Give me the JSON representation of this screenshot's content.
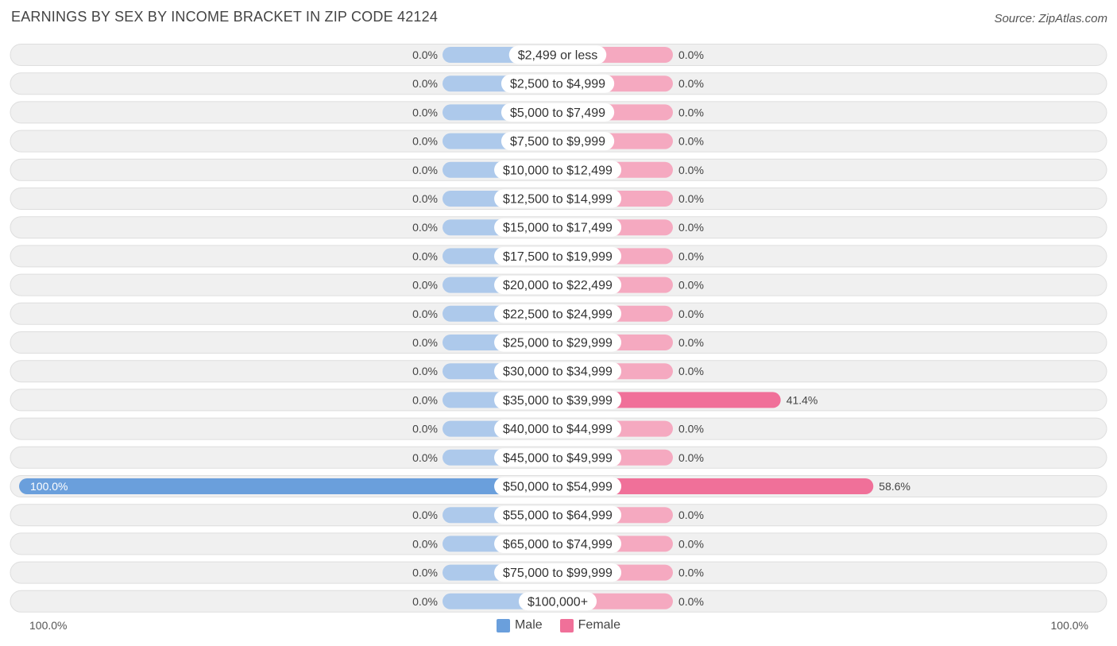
{
  "header": {
    "title": "EARNINGS BY SEX BY INCOME BRACKET IN ZIP CODE 42124",
    "source": "Source: ZipAtlas.com"
  },
  "colors": {
    "male_full": "#6a9fdc",
    "male_light": "#adc9eb",
    "female_full": "#f07099",
    "female_light": "#f5a9c0",
    "row_bg": "#f0f0f0",
    "row_border": "#dedede"
  },
  "axis": {
    "left_label": "100.0%",
    "right_label": "100.0%"
  },
  "chart_data": {
    "type": "bar",
    "orientation": "horizontal-diverging",
    "title": "EARNINGS BY SEX BY INCOME BRACKET IN ZIP CODE 42124",
    "xlim": [
      -100,
      100
    ],
    "legend": {
      "placement": "bottom-center",
      "entries": [
        "Male",
        "Female"
      ]
    },
    "categories": [
      "$2,499 or less",
      "$2,500 to $4,999",
      "$5,000 to $7,499",
      "$7,500 to $9,999",
      "$10,000 to $12,499",
      "$12,500 to $14,999",
      "$15,000 to $17,499",
      "$17,500 to $19,999",
      "$20,000 to $22,499",
      "$22,500 to $24,999",
      "$25,000 to $29,999",
      "$30,000 to $34,999",
      "$35,000 to $39,999",
      "$40,000 to $44,999",
      "$45,000 to $49,999",
      "$50,000 to $54,999",
      "$55,000 to $64,999",
      "$65,000 to $74,999",
      "$75,000 to $99,999",
      "$100,000+"
    ],
    "series": [
      {
        "name": "Male",
        "values": [
          0,
          0,
          0,
          0,
          0,
          0,
          0,
          0,
          0,
          0,
          0,
          0,
          0,
          0,
          0,
          100,
          0,
          0,
          0,
          0
        ],
        "labels": [
          "0.0%",
          "0.0%",
          "0.0%",
          "0.0%",
          "0.0%",
          "0.0%",
          "0.0%",
          "0.0%",
          "0.0%",
          "0.0%",
          "0.0%",
          "0.0%",
          "0.0%",
          "0.0%",
          "0.0%",
          "100.0%",
          "0.0%",
          "0.0%",
          "0.0%",
          "0.0%"
        ]
      },
      {
        "name": "Female",
        "values": [
          0,
          0,
          0,
          0,
          0,
          0,
          0,
          0,
          0,
          0,
          0,
          0,
          41.4,
          0,
          0,
          58.6,
          0,
          0,
          0,
          0
        ],
        "labels": [
          "0.0%",
          "0.0%",
          "0.0%",
          "0.0%",
          "0.0%",
          "0.0%",
          "0.0%",
          "0.0%",
          "0.0%",
          "0.0%",
          "0.0%",
          "0.0%",
          "41.4%",
          "0.0%",
          "0.0%",
          "58.6%",
          "0.0%",
          "0.0%",
          "0.0%",
          "0.0%"
        ]
      }
    ]
  }
}
